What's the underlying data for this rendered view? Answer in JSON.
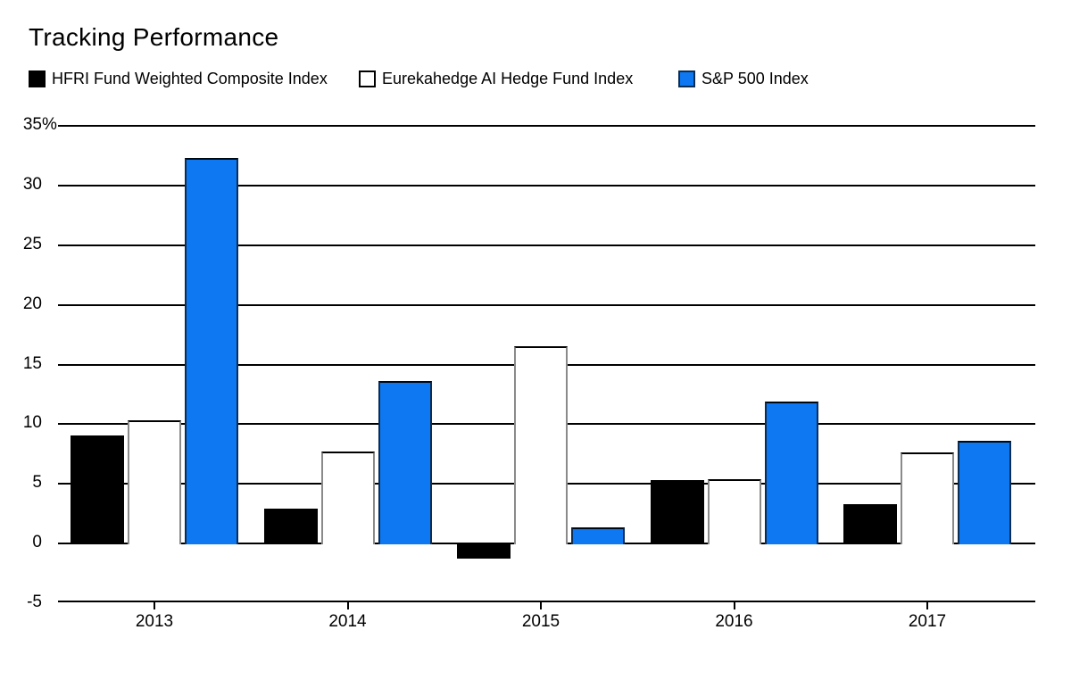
{
  "title": "Tracking Performance",
  "chart_data": {
    "type": "bar",
    "title": "Tracking Performance",
    "categories": [
      "2013",
      "2014",
      "2015",
      "2016",
      "2017"
    ],
    "series": [
      {
        "key": "hfri",
        "name": "HFRI Fund Weighted Composite Index",
        "color": "#000000",
        "values": [
          9.1,
          3.0,
          -1.2,
          5.4,
          3.4
        ]
      },
      {
        "key": "eurekahedge-ai",
        "name": "Eurekahedge AI Hedge Fund Index",
        "color": "#ffffff",
        "values": [
          10.4,
          7.8,
          16.6,
          5.5,
          7.7
        ]
      },
      {
        "key": "sp500",
        "name": "S&P 500 Index",
        "color": "#0d78f2",
        "values": [
          32.4,
          13.7,
          1.4,
          12.0,
          8.7
        ]
      }
    ],
    "ylim": [
      -5,
      35
    ],
    "ytick_step": 5,
    "ytick_labels": [
      "35%",
      "30",
      "25",
      "20",
      "15",
      "10",
      "5",
      "0",
      "-5"
    ],
    "xlabel": "",
    "ylabel": "",
    "grid": "horizontal",
    "legend_position": "top"
  }
}
